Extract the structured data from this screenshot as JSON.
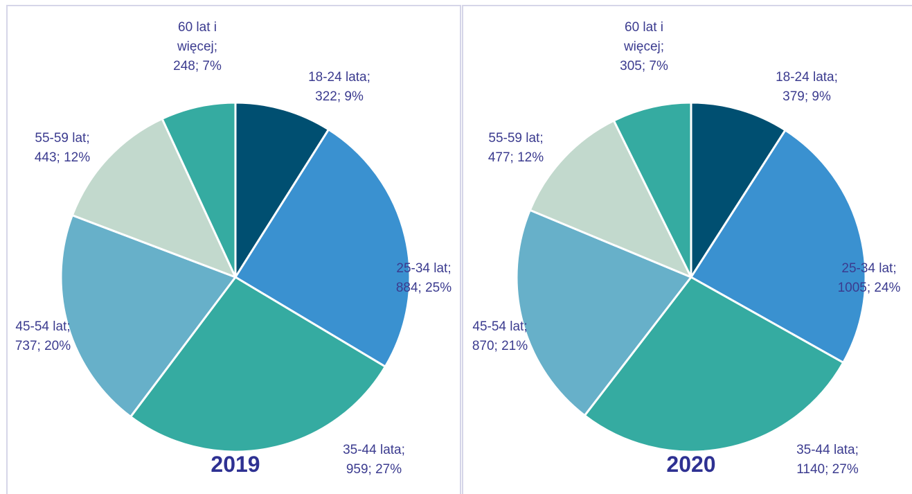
{
  "chart_data": [
    {
      "type": "pie",
      "title": "2019",
      "categories": [
        "18-24 lata;",
        "25-34 lat;",
        "35-44 lata;",
        "45-54 lat;",
        "55-59 lat;",
        "60 lat i więcej;"
      ],
      "values": [
        322,
        884,
        959,
        737,
        443,
        248
      ],
      "value_labels": [
        "322; 9%",
        "884; 25%",
        "959; 27%",
        "737; 20%",
        "443; 12%",
        "248; 7%"
      ],
      "colors": [
        "#004f71",
        "#3a91d0",
        "#35aba1",
        "#67b0c9",
        "#c2d9cd",
        "#35aba1"
      ]
    },
    {
      "type": "pie",
      "title": "2020",
      "categories": [
        "18-24 lata;",
        "25-34 lat;",
        "35-44 lata;",
        "45-54 lat;",
        "55-59 lat;",
        "60 lat i więcej;"
      ],
      "values": [
        379,
        1005,
        1140,
        870,
        477,
        305
      ],
      "value_labels": [
        "379; 9%",
        "1005; 24%",
        "1140; 27%",
        "870; 21%",
        "477; 12%",
        "305; 7%"
      ],
      "colors": [
        "#004f71",
        "#3a91d0",
        "#35aba1",
        "#67b0c9",
        "#c2d9cd",
        "#35aba1"
      ]
    }
  ]
}
